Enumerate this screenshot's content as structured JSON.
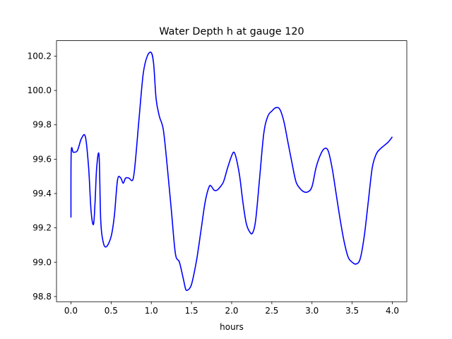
{
  "chart_data": {
    "type": "line",
    "title": "Water Depth h at gauge 120",
    "xlabel": "hours",
    "ylabel": "",
    "xlim": [
      -0.18,
      4.18
    ],
    "ylim": [
      98.77,
      100.29
    ],
    "xticks": [
      0.0,
      0.5,
      1.0,
      1.5,
      2.0,
      2.5,
      3.0,
      3.5,
      4.0
    ],
    "xtick_labels": [
      "0.0",
      "0.5",
      "1.0",
      "1.5",
      "2.0",
      "2.5",
      "3.0",
      "3.5",
      "4.0"
    ],
    "yticks": [
      98.8,
      99.0,
      99.2,
      99.4,
      99.6,
      99.8,
      100.0,
      100.2
    ],
    "ytick_labels": [
      "98.8",
      "99.0",
      "99.2",
      "99.4",
      "99.6",
      "99.8",
      "100.0",
      "100.2"
    ],
    "grid": false,
    "legend": "none",
    "series": [
      {
        "color": "#0000ff",
        "x": [
          0.0,
          0.003,
          0.03,
          0.08,
          0.13,
          0.18,
          0.22,
          0.25,
          0.28,
          0.3,
          0.32,
          0.35,
          0.37,
          0.4,
          0.44,
          0.5,
          0.54,
          0.58,
          0.62,
          0.65,
          0.68,
          0.72,
          0.77,
          0.8,
          0.85,
          0.9,
          0.95,
          1.0,
          1.03,
          1.06,
          1.1,
          1.15,
          1.2,
          1.25,
          1.3,
          1.35,
          1.4,
          1.43,
          1.46,
          1.48,
          1.5,
          1.53,
          1.57,
          1.62,
          1.67,
          1.72,
          1.75,
          1.78,
          1.82,
          1.86,
          1.9,
          1.95,
          2.0,
          2.03,
          2.06,
          2.1,
          2.14,
          2.18,
          2.22,
          2.26,
          2.3,
          2.35,
          2.4,
          2.45,
          2.5,
          2.55,
          2.6,
          2.65,
          2.7,
          2.75,
          2.8,
          2.85,
          2.9,
          2.95,
          3.0,
          3.05,
          3.1,
          3.15,
          3.2,
          3.25,
          3.3,
          3.35,
          3.4,
          3.45,
          3.5,
          3.55,
          3.6,
          3.65,
          3.7,
          3.75,
          3.8,
          3.85,
          3.9,
          3.95,
          4.0
        ],
        "y": [
          99.26,
          99.64,
          99.64,
          99.65,
          99.72,
          99.73,
          99.55,
          99.3,
          99.22,
          99.35,
          99.55,
          99.62,
          99.25,
          99.12,
          99.09,
          99.15,
          99.27,
          99.48,
          99.49,
          99.46,
          99.49,
          99.49,
          99.48,
          99.58,
          99.85,
          100.1,
          100.2,
          100.22,
          100.15,
          99.95,
          99.85,
          99.77,
          99.55,
          99.3,
          99.05,
          99.0,
          98.9,
          98.84,
          98.84,
          98.85,
          98.87,
          98.93,
          99.03,
          99.19,
          99.35,
          99.44,
          99.44,
          99.42,
          99.42,
          99.44,
          99.47,
          99.55,
          99.62,
          99.64,
          99.6,
          99.5,
          99.35,
          99.23,
          99.18,
          99.17,
          99.25,
          99.5,
          99.75,
          99.85,
          99.88,
          99.9,
          99.89,
          99.82,
          99.7,
          99.58,
          99.47,
          99.43,
          99.41,
          99.41,
          99.44,
          99.55,
          99.62,
          99.66,
          99.65,
          99.55,
          99.4,
          99.25,
          99.12,
          99.03,
          99.0,
          98.99,
          99.02,
          99.15,
          99.35,
          99.55,
          99.63,
          99.66,
          99.68,
          99.7,
          99.73
        ]
      }
    ]
  }
}
